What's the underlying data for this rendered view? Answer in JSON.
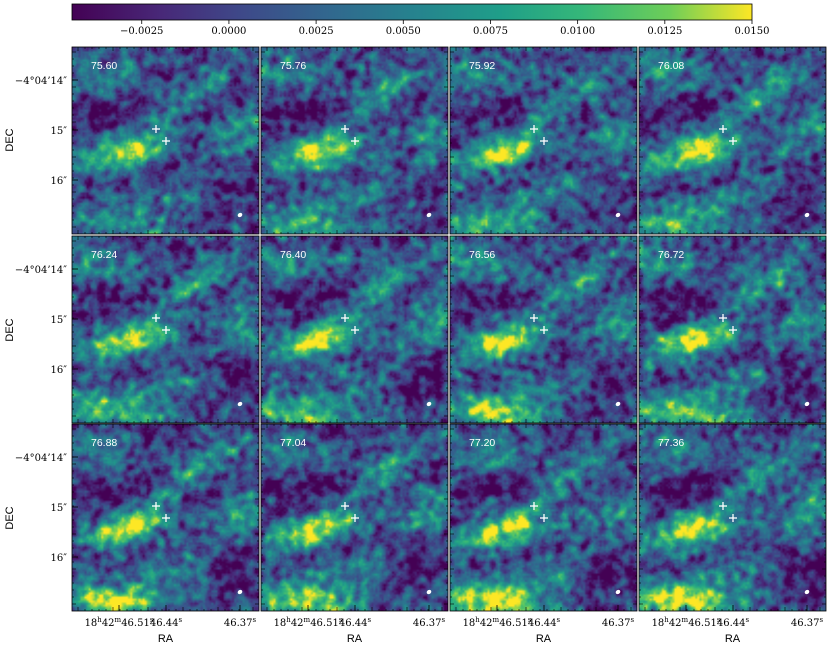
{
  "chart_data": {
    "type": "heatmap",
    "colormap": "viridis",
    "colorbar": {
      "location": "top",
      "range": [
        -0.0045,
        0.015
      ],
      "ticks": [
        -0.0025,
        0.0,
        0.0025,
        0.005,
        0.0075,
        0.01,
        0.0125,
        0.015
      ],
      "tick_labels": [
        "−0.0025",
        "0.0000",
        "0.0025",
        "0.0050",
        "0.0075",
        "0.0100",
        "0.0125",
        "0.0150"
      ]
    },
    "xlabel": "RA",
    "ylabel": "DEC",
    "x_ticks": [
      {
        "main": "18",
        "sup1": "h",
        "main2": "42",
        "sup2": "m",
        "main3": "46.51",
        "sup3": "s"
      },
      {
        "main": "46.44",
        "sup1": "s"
      },
      {
        "main": "46.37",
        "sup1": "s"
      }
    ],
    "y_ticks": [
      "−4°04’14″",
      "15″",
      "16″"
    ],
    "grid": false,
    "panels": [
      {
        "label": "75.60"
      },
      {
        "label": "75.76"
      },
      {
        "label": "75.92"
      },
      {
        "label": "76.08"
      },
      {
        "label": "76.24"
      },
      {
        "label": "76.40"
      },
      {
        "label": "76.56"
      },
      {
        "label": "76.72"
      },
      {
        "label": "76.88"
      },
      {
        "label": "77.04"
      },
      {
        "label": "77.20"
      },
      {
        "label": "77.36"
      }
    ],
    "markers": "two white crosses per panel",
    "beam": "white ellipse at lower right of each panel"
  }
}
